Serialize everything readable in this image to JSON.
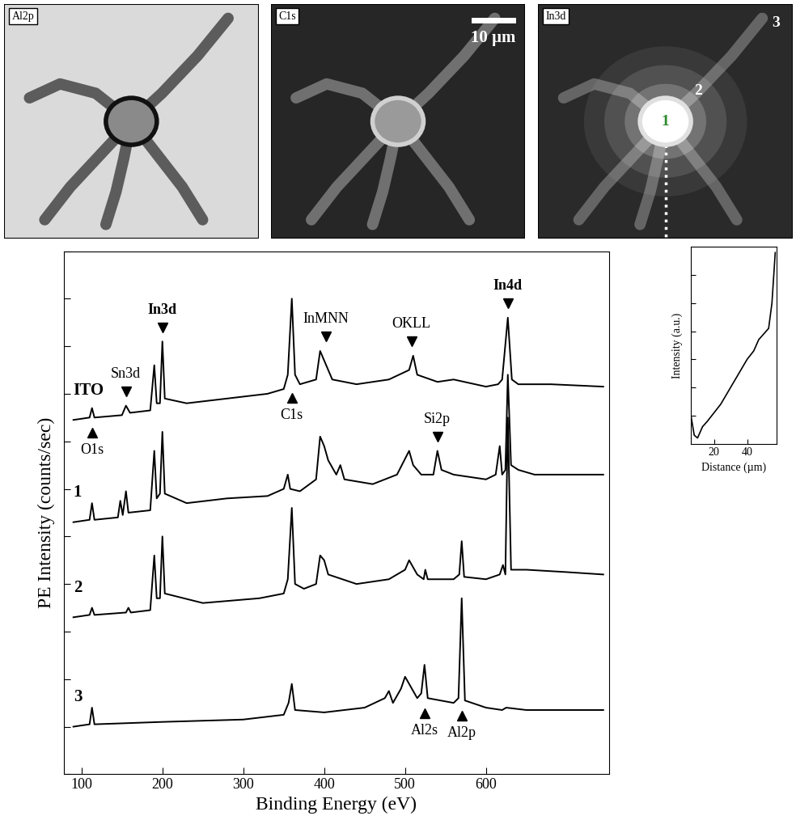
{
  "panels": [
    {
      "label": "Al2p"
    },
    {
      "label": "C1s",
      "scale_bar": "10 µm"
    },
    {
      "label": "In3d",
      "regions": [
        "1",
        "2",
        "3"
      ]
    }
  ],
  "chart_data": [
    {
      "type": "line",
      "xlabel": "Binding Energy (eV)",
      "ylabel": "PE Intensity (counts/sec)",
      "xlim": [
        78,
        752
      ],
      "xticks": [
        100,
        200,
        300,
        400,
        500,
        600
      ],
      "ylim": [
        0,
        11
      ],
      "yticks": [
        0,
        1,
        2,
        3,
        4,
        5,
        6,
        7,
        8,
        9,
        10,
        11
      ],
      "tick_labels": "x",
      "series": [
        {
          "name": "ITO",
          "color": "#000000",
          "x": [
            90,
            110,
            113,
            116,
            150,
            155,
            160,
            185,
            190,
            193,
            197,
            200,
            203,
            230,
            280,
            330,
            350,
            355,
            360,
            364,
            370,
            390,
            395,
            400,
            405,
            410,
            440,
            480,
            505,
            510,
            515,
            540,
            560,
            600,
            615,
            620,
            627,
            632,
            640,
            680,
            745
          ],
          "values": [
            7.45,
            7.5,
            7.7,
            7.5,
            7.55,
            7.75,
            7.6,
            7.65,
            8.6,
            7.8,
            7.8,
            9.1,
            7.9,
            7.8,
            7.9,
            8.0,
            8.1,
            8.4,
            10.0,
            8.4,
            8.2,
            8.3,
            8.9,
            8.7,
            8.5,
            8.3,
            8.2,
            8.3,
            8.5,
            8.8,
            8.4,
            8.25,
            8.3,
            8.15,
            8.2,
            8.3,
            9.6,
            8.3,
            8.2,
            8.2,
            8.15
          ]
        },
        {
          "name": "1",
          "color": "#000000",
          "x": [
            90,
            110,
            113,
            116,
            145,
            148,
            151,
            155,
            158,
            185,
            190,
            193,
            197,
            200,
            203,
            230,
            280,
            330,
            350,
            355,
            358,
            370,
            390,
            395,
            400,
            405,
            415,
            420,
            425,
            460,
            490,
            505,
            510,
            520,
            535,
            540,
            545,
            560,
            600,
            612,
            617,
            620,
            624,
            627,
            631,
            640,
            660,
            700,
            745
          ],
          "values": [
            5.3,
            5.35,
            5.7,
            5.35,
            5.4,
            5.75,
            5.45,
            5.95,
            5.5,
            5.55,
            6.8,
            5.8,
            5.9,
            7.2,
            5.9,
            5.7,
            5.8,
            5.85,
            6.0,
            6.3,
            6.0,
            5.95,
            6.2,
            7.1,
            6.9,
            6.6,
            6.3,
            6.5,
            6.2,
            6.1,
            6.3,
            6.8,
            6.5,
            6.3,
            6.3,
            6.8,
            6.4,
            6.3,
            6.2,
            6.3,
            6.9,
            6.3,
            6.4,
            8.4,
            6.5,
            6.4,
            6.3,
            6.3,
            6.3
          ]
        },
        {
          "name": "2",
          "color": "#000000",
          "x": [
            90,
            110,
            113,
            116,
            155,
            158,
            161,
            185,
            190,
            193,
            197,
            200,
            203,
            250,
            320,
            350,
            355,
            360,
            364,
            375,
            390,
            395,
            400,
            405,
            440,
            480,
            500,
            505,
            515,
            523,
            525,
            528,
            560,
            567,
            570,
            573,
            600,
            617,
            621,
            624,
            627,
            631,
            650,
            700,
            745
          ],
          "values": [
            3.3,
            3.35,
            3.5,
            3.35,
            3.4,
            3.5,
            3.4,
            3.45,
            4.6,
            3.7,
            3.7,
            5.0,
            3.8,
            3.6,
            3.7,
            3.8,
            4.1,
            5.6,
            4.0,
            3.9,
            4.0,
            4.6,
            4.5,
            4.2,
            4.0,
            4.1,
            4.3,
            4.5,
            4.2,
            4.1,
            4.3,
            4.1,
            4.1,
            4.2,
            4.9,
            4.15,
            4.1,
            4.2,
            4.4,
            4.2,
            7.5,
            4.3,
            4.3,
            4.25,
            4.2
          ]
        },
        {
          "name": "3",
          "color": "#000000",
          "x": [
            90,
            110,
            113,
            116,
            200,
            300,
            350,
            356,
            360,
            364,
            400,
            450,
            475,
            480,
            485,
            495,
            500,
            505,
            515,
            520,
            524,
            528,
            560,
            566,
            570,
            574,
            600,
            620,
            625,
            650,
            700,
            745
          ],
          "values": [
            1.0,
            1.05,
            1.4,
            1.05,
            1.1,
            1.15,
            1.25,
            1.5,
            1.9,
            1.35,
            1.3,
            1.4,
            1.6,
            1.75,
            1.5,
            1.8,
            2.05,
            1.9,
            1.6,
            1.7,
            2.3,
            1.6,
            1.5,
            1.6,
            3.7,
            1.55,
            1.4,
            1.35,
            1.4,
            1.35,
            1.35,
            1.35
          ]
        }
      ],
      "labels_above": [
        {
          "text": "Sn3d",
          "x": 155,
          "series": "ITO"
        },
        {
          "text": "In3d",
          "x": 200,
          "series": "ITO"
        },
        {
          "text": "InMNN",
          "x": 402,
          "series": "ITO"
        },
        {
          "text": "OKLL",
          "x": 508,
          "series": "ITO"
        },
        {
          "text": "In4d",
          "x": 627,
          "series": "ITO"
        },
        {
          "text": "Si2p",
          "x": 540,
          "series": "1"
        }
      ],
      "labels_below": [
        {
          "text": "O1s",
          "x": 113,
          "series": "ITO"
        },
        {
          "text": "C1s",
          "x": 360,
          "series": "ITO"
        },
        {
          "text": "Al2s",
          "x": 524,
          "series": "3"
        },
        {
          "text": "Al2p",
          "x": 570,
          "series": "3"
        }
      ]
    },
    {
      "type": "line",
      "xlabel": "Distance (µm)",
      "ylabel": "Intensity (a.u.)",
      "x": [
        6,
        8,
        10,
        13,
        16,
        20,
        24,
        28,
        32,
        36,
        40,
        44,
        47,
        50,
        53,
        55,
        57
      ],
      "values": [
        1.0,
        0.3,
        0.2,
        0.6,
        0.8,
        1.1,
        1.4,
        1.8,
        2.2,
        2.6,
        3.0,
        3.3,
        3.7,
        3.9,
        4.1,
        5.0,
        6.8
      ],
      "color": "#000000",
      "xlim": [
        6,
        58
      ],
      "xticks": [
        20,
        40
      ],
      "ylim": [
        0,
        7
      ],
      "yticks": [
        1,
        2,
        3,
        4,
        5,
        6
      ],
      "tick_labels": "x"
    }
  ]
}
